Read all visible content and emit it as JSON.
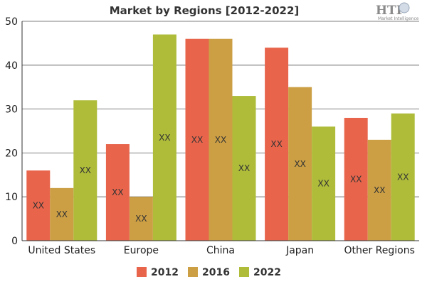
{
  "chart_data": {
    "type": "bar",
    "title": "Market by Regions [2012-2022]",
    "categories": [
      "United States",
      "Europe",
      "China",
      "Japan",
      "Other Regions"
    ],
    "series": [
      {
        "name": "2012",
        "color": "#e8654c",
        "values": [
          16,
          22,
          46,
          44,
          28
        ],
        "labels": [
          "XX",
          "XX",
          "XX",
          "XX",
          "XX"
        ]
      },
      {
        "name": "2016",
        "color": "#cc9f45",
        "values": [
          12,
          10,
          46,
          35,
          23
        ],
        "labels": [
          "XX",
          "XX",
          "XX",
          "XX",
          "XX"
        ]
      },
      {
        "name": "2022",
        "color": "#aebc3a",
        "values": [
          32,
          47,
          33,
          26,
          29
        ],
        "labels": [
          "XX",
          "XX",
          "XX",
          "XX",
          "XX"
        ]
      }
    ],
    "ylim": [
      0,
      50
    ],
    "yticks": [
      "0",
      "10",
      "20",
      "30",
      "40",
      "50"
    ],
    "grid": true,
    "legend_position": "bottom"
  },
  "logo": {
    "text": "HTF",
    "subtext": "Market Intelligence"
  }
}
